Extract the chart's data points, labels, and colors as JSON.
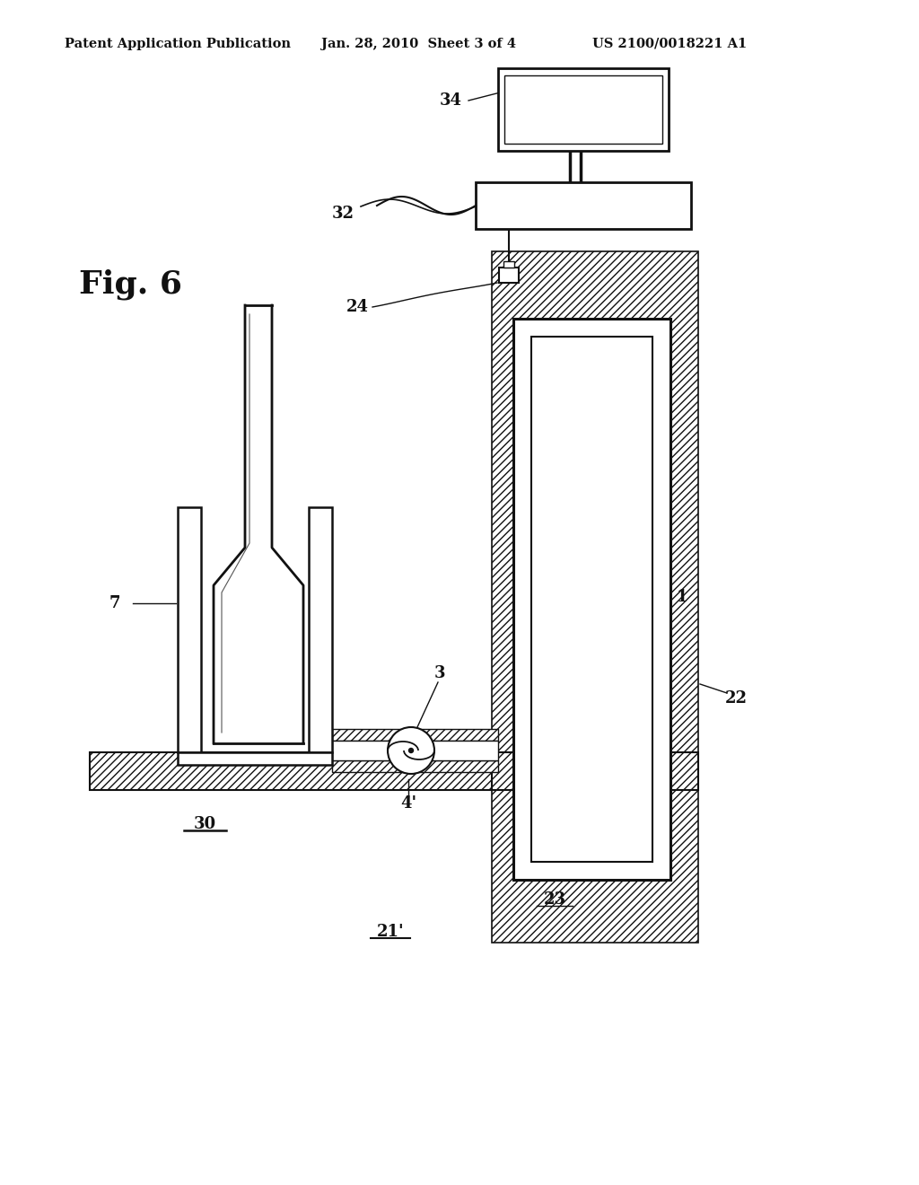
{
  "bg_color": "#ffffff",
  "line_color": "#111111",
  "header_left": "Patent Application Publication",
  "header_mid": "Jan. 28, 2010  Sheet 3 of 4",
  "header_right": "US 2100/0018221 A1",
  "fig_label": "Fig. 6"
}
